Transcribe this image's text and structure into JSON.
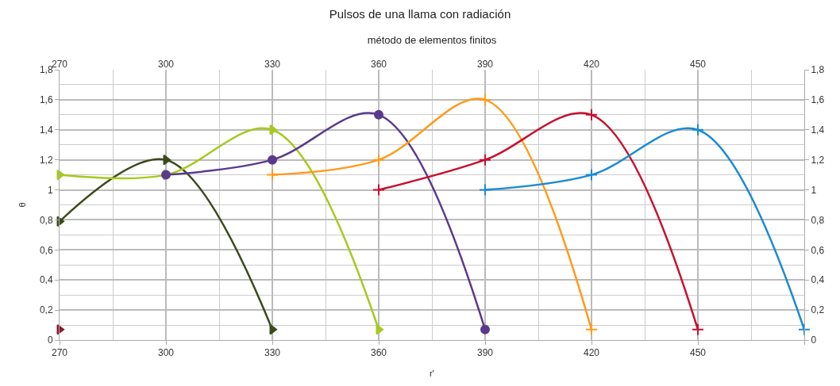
{
  "chart_data": {
    "type": "line",
    "title": "Pulsos de una llama con radiación",
    "x2label": "método de elementos finitos",
    "xlabel": "r'",
    "ylabel": "θ",
    "xlim": [
      270,
      480
    ],
    "xticks": [
      270,
      300,
      330,
      360,
      390,
      420,
      450,
      {
        "value": 480,
        "label": null
      }
    ],
    "x2lim": [
      270,
      480
    ],
    "x2ticks": [
      270,
      300,
      330,
      360,
      390,
      420,
      450
    ],
    "ylim": [
      0,
      1.8
    ],
    "yticks": [
      0,
      {
        "value": 0.2,
        "label": "0,2"
      },
      {
        "value": 0.4,
        "label": "0,4"
      },
      {
        "value": 0.6,
        "label": "0,6"
      },
      {
        "value": 0.8,
        "label": "0,8"
      },
      1,
      {
        "value": 1.2,
        "label": "1,2"
      },
      {
        "value": 1.4,
        "label": "1,4"
      },
      {
        "value": 1.6,
        "label": "1,6"
      },
      {
        "value": 1.8,
        "label": "1,8"
      }
    ],
    "y2lim": [
      0,
      1.8
    ],
    "y2ticks": [
      0,
      {
        "value": 0.2,
        "label": "0,2"
      },
      {
        "value": 0.4,
        "label": "0,4"
      },
      {
        "value": 0.6,
        "label": "0,6"
      },
      {
        "value": 0.8,
        "label": "0,8"
      },
      1,
      {
        "value": 1.2,
        "label": "1,2"
      },
      {
        "value": 1.4,
        "label": "1,4"
      },
      {
        "value": 1.6,
        "label": "1,6"
      },
      {
        "value": 1.8,
        "label": "1,8"
      }
    ],
    "grid": true,
    "series": [
      {
        "color": "#8b1a2e",
        "type": "scatter",
        "marker": "triangle",
        "x": [
          270
        ],
        "values": [
          0.07
        ]
      },
      {
        "color": "#3b4a1a",
        "marker": "triangle",
        "x": [
          270,
          300,
          330
        ],
        "values": [
          0.79,
          1.2,
          0.07
        ]
      },
      {
        "color": "#a6c91c",
        "marker": "triangle",
        "x": [
          270,
          300,
          330,
          360
        ],
        "values": [
          1.1,
          1.1,
          1.4,
          0.07
        ]
      },
      {
        "color": "#5a3a8c",
        "marker": "circle",
        "x": [
          300,
          330,
          360,
          390
        ],
        "values": [
          1.1,
          1.2,
          1.5,
          0.07
        ]
      },
      {
        "color": "#ff9a1c",
        "marker": "cross",
        "x": [
          330,
          360,
          390,
          420
        ],
        "values": [
          1.1,
          1.2,
          1.6,
          0.07
        ]
      },
      {
        "color": "#c8102e",
        "marker": "cross",
        "x": [
          360,
          390,
          420,
          450
        ],
        "values": [
          1.0,
          1.2,
          1.5,
          0.07
        ]
      },
      {
        "color": "#1a8ad4",
        "marker": "cross",
        "x": [
          390,
          420,
          450,
          480
        ],
        "values": [
          1.0,
          1.1,
          1.4,
          0.07
        ]
      }
    ]
  }
}
